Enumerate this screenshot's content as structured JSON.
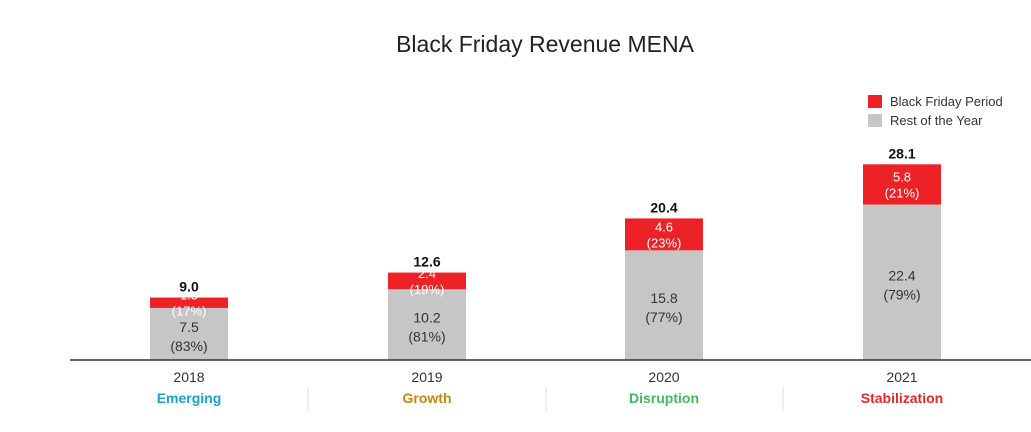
{
  "chart_data": {
    "type": "bar",
    "stacked": true,
    "title": "Black Friday Revenue MENA",
    "categories": [
      "2018",
      "2019",
      "2020",
      "2021"
    ],
    "phases": [
      {
        "label": "Emerging",
        "color": "#1aa3c8"
      },
      {
        "label": "Growth",
        "color": "#c8860c"
      },
      {
        "label": "Disruption",
        "color": "#43b85c"
      },
      {
        "label": "Stabilization",
        "color": "#e8262a"
      }
    ],
    "totals": [
      "9.0",
      "12.6",
      "20.4",
      "28.1"
    ],
    "series": [
      {
        "name": "Rest of the Year",
        "color": "#c6c6c6",
        "values": [
          7.5,
          10.2,
          15.8,
          22.4
        ],
        "value_labels": [
          "7.5",
          "10.2",
          "15.8",
          "22.4"
        ],
        "share_labels": [
          "(83%)",
          "(81%)",
          "(77%)",
          "(79%)"
        ]
      },
      {
        "name": "Black Friday Period",
        "color": "#ec2227",
        "values": [
          1.5,
          2.4,
          4.6,
          5.8
        ],
        "value_labels": [
          "1.5",
          "2.4",
          "4.6",
          "5.8"
        ],
        "share_labels": [
          "(17%)",
          "(19%)",
          "(23%)",
          "(21%)"
        ]
      }
    ],
    "legend": {
      "placement": "top-right",
      "order": [
        "Black Friday Period",
        "Rest of the Year"
      ]
    }
  }
}
